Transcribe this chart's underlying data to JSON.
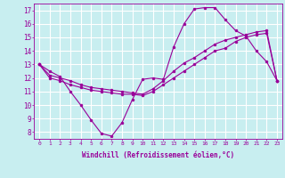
{
  "xlabel": "Windchill (Refroidissement éolien,°C)",
  "background_color": "#c8eef0",
  "grid_color": "#ffffff",
  "line_color": "#990099",
  "x_hours": [
    0,
    1,
    2,
    3,
    4,
    5,
    6,
    7,
    8,
    9,
    10,
    11,
    12,
    13,
    14,
    15,
    16,
    17,
    18,
    19,
    20,
    21,
    22,
    23
  ],
  "series1": [
    13.0,
    12.5,
    12.1,
    11.0,
    10.0,
    8.9,
    7.9,
    7.7,
    8.7,
    10.4,
    11.9,
    12.0,
    11.9,
    14.3,
    16.0,
    17.1,
    17.2,
    17.2,
    16.3,
    15.5,
    15.1,
    14.0,
    13.2,
    11.8
  ],
  "series2": [
    13.0,
    12.0,
    11.8,
    11.5,
    11.3,
    11.1,
    11.0,
    10.9,
    10.8,
    10.8,
    10.7,
    11.0,
    11.5,
    12.0,
    12.5,
    13.0,
    13.5,
    14.0,
    14.2,
    14.7,
    15.0,
    15.2,
    15.3,
    11.8
  ],
  "series3": [
    13.0,
    12.2,
    12.0,
    11.8,
    11.5,
    11.3,
    11.2,
    11.1,
    11.0,
    10.9,
    10.8,
    11.2,
    11.8,
    12.5,
    13.1,
    13.5,
    14.0,
    14.5,
    14.8,
    15.0,
    15.2,
    15.4,
    15.5,
    11.8
  ],
  "ylim": [
    7.5,
    17.5
  ],
  "yticks": [
    8,
    9,
    10,
    11,
    12,
    13,
    14,
    15,
    16,
    17
  ],
  "xticks": [
    0,
    1,
    2,
    3,
    4,
    5,
    6,
    7,
    8,
    9,
    10,
    11,
    12,
    13,
    14,
    15,
    16,
    17,
    18,
    19,
    20,
    21,
    22,
    23
  ],
  "xlim": [
    -0.5,
    23.5
  ]
}
